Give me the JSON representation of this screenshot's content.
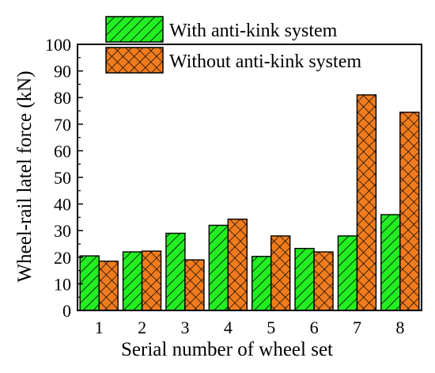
{
  "chart_data": {
    "type": "bar",
    "title": "",
    "xlabel": "Serial number of wheel set",
    "ylabel": "Wheel-rail latel force (kN)",
    "ylim": [
      0,
      100
    ],
    "yticks": [
      "0",
      "10",
      "20",
      "30",
      "40",
      "50",
      "60",
      "70",
      "80",
      "90",
      "100"
    ],
    "categories": [
      "1",
      "2",
      "3",
      "4",
      "5",
      "6",
      "7",
      "8"
    ],
    "series": [
      {
        "name": "With anti-kink system",
        "color": "#22ee22",
        "pattern": "diagonal-hatch",
        "values": [
          20.5,
          22,
          29,
          32,
          20.3,
          23.3,
          28,
          36
        ]
      },
      {
        "name": "Without anti-kink system",
        "color": "#f07c1e",
        "pattern": "cross-hatch",
        "values": [
          18.5,
          22.3,
          19,
          34.3,
          28,
          22,
          81,
          74.5
        ]
      }
    ],
    "legend_position": "top",
    "grid": false
  }
}
